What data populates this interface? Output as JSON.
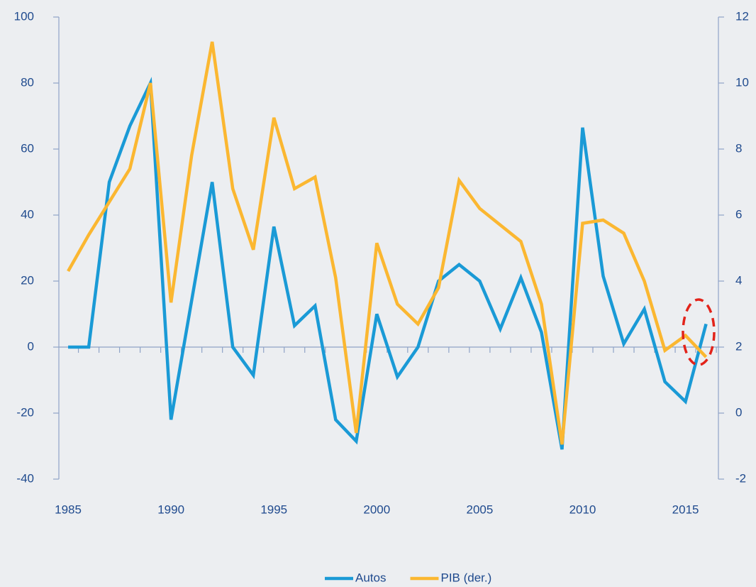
{
  "chart_data": {
    "type": "line",
    "x": [
      1985,
      1986,
      1987,
      1988,
      1989,
      1990,
      1991,
      1992,
      1993,
      1994,
      1995,
      1996,
      1997,
      1998,
      1999,
      2000,
      2001,
      2002,
      2003,
      2004,
      2005,
      2006,
      2007,
      2008,
      2009,
      2010,
      2011,
      2012,
      2013,
      2014,
      2015,
      2016
    ],
    "series": [
      {
        "name": "Autos",
        "color": "#1a9ad6",
        "values": [
          0,
          0,
          50,
          67,
          80,
          -22,
          14,
          50,
          0,
          -8.5,
          36.5,
          6.5,
          12.5,
          -22,
          -28.5,
          10,
          -9,
          0,
          20,
          25,
          20,
          5.5,
          21,
          4.5,
          -31,
          66.5,
          21.5,
          1,
          11.5,
          -10.5,
          -16.5,
          7
        ]
      },
      {
        "name": "PIB (der.)",
        "color": "#fbb731",
        "axis": "y2",
        "values": [
          4.3,
          5.4,
          6.4,
          7.4,
          10.0,
          3.35,
          7.8,
          11.25,
          6.8,
          4.95,
          8.95,
          6.8,
          7.15,
          4.1,
          -0.6,
          5.15,
          3.3,
          2.7,
          3.8,
          7.05,
          6.2,
          5.7,
          5.2,
          3.3,
          -0.95,
          5.75,
          5.85,
          5.45,
          4.0,
          1.9,
          2.35,
          1.7
        ]
      }
    ],
    "xlim": [
      1984.55,
      2016.6
    ],
    "xticks": [
      1985,
      1990,
      1995,
      2000,
      2005,
      2010,
      2015
    ],
    "ylim": [
      -40,
      100
    ],
    "yticks": [
      -40,
      -20,
      0,
      20,
      40,
      60,
      80,
      100
    ],
    "y2lim": [
      -2,
      12
    ],
    "y2ticks": [
      -2,
      0,
      2,
      4,
      6,
      8,
      10,
      12
    ],
    "legend": "bottom"
  }
}
